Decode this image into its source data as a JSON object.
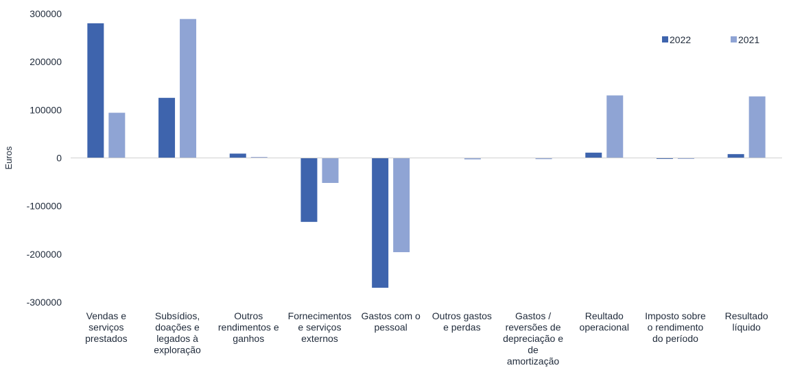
{
  "chart_data": {
    "type": "bar",
    "ylabel": "Euros",
    "ylim": [
      -300000,
      300000
    ],
    "yticks": [
      "300000",
      "200000",
      "100000",
      "0",
      "-100000",
      "-200000",
      "-300000"
    ],
    "grid": false,
    "legend_position": "top-right",
    "categories": [
      [
        "Vendas e",
        "serviços",
        "prestados"
      ],
      [
        "Subsídios,",
        "doações e",
        "legados à",
        "exploração"
      ],
      [
        "Outros",
        "rendimentos e",
        "ganhos"
      ],
      [
        "Fornecimentos",
        "e serviços",
        "externos"
      ],
      [
        "Gastos com o",
        "pessoal"
      ],
      [
        "Outros gastos",
        "e perdas"
      ],
      [
        "Gastos /",
        "reversões de",
        "depreciação e",
        "de",
        "amortização"
      ],
      [
        "Reultado",
        "operacional"
      ],
      [
        "Imposto sobre",
        "o rendimento",
        "do período"
      ],
      [
        "Resultado",
        "líquido"
      ]
    ],
    "series": [
      {
        "name": "2022",
        "color": "#3e64ad",
        "values": [
          280000,
          125000,
          9000,
          -133000,
          -270000,
          0,
          0,
          11000,
          -2000,
          8000
        ]
      },
      {
        "name": "2021",
        "color": "#8fa4d4",
        "values": [
          94000,
          289000,
          2000,
          -52000,
          -196000,
          -3000,
          -2500,
          130000,
          -2000,
          128000
        ]
      }
    ]
  }
}
